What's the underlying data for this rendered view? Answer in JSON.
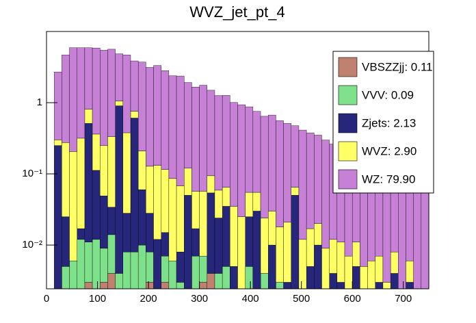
{
  "chart_data": {
    "type": "stacked-histogram",
    "title": "WVZ_jet_pt_4",
    "bins": [
      0,
      15,
      30,
      45,
      60,
      75,
      90,
      105,
      120,
      135,
      150,
      165,
      180,
      195,
      210,
      225,
      240,
      255,
      270,
      285,
      300,
      315,
      330,
      345,
      360,
      375,
      390,
      405,
      420,
      435,
      450,
      465,
      480,
      495,
      510,
      525,
      540,
      555,
      570,
      585,
      600,
      615,
      630,
      645,
      660,
      675,
      690,
      705,
      720,
      735,
      750
    ],
    "series": [
      {
        "name": "VBSZZjj: 0.11",
        "color": "#c08070",
        "values": [
          0,
          0,
          0,
          0,
          0.002,
          0.003,
          0,
          0.003,
          0.004,
          0,
          0,
          0.002,
          0,
          0.003,
          0.002,
          0.003,
          0,
          0,
          0,
          0.002,
          0.003,
          0.004,
          0,
          0.002,
          0,
          0,
          0,
          0,
          0,
          0,
          0,
          0,
          0,
          0,
          0,
          0,
          0,
          0,
          0,
          0,
          0,
          0,
          0,
          0,
          0,
          0,
          0,
          0,
          0,
          0
        ]
      },
      {
        "name": "VVV: 0.09",
        "color": "#7ee08a",
        "values": [
          0,
          0,
          0.005,
          0.006,
          0.01,
          0.008,
          0.012,
          0.006,
          0.01,
          0.004,
          0.008,
          0.006,
          0.01,
          0.005,
          0,
          0.004,
          0.006,
          0.003,
          0,
          0.005,
          0.004,
          0,
          0.004,
          0.003,
          0,
          0,
          0.005,
          0,
          0.004,
          0,
          0.003,
          0,
          0,
          0,
          0,
          0,
          0,
          0,
          0,
          0,
          0,
          0,
          0,
          0,
          0,
          0,
          0,
          0,
          0,
          0
        ]
      },
      {
        "name": "Zjets: 2.13",
        "color": "#26267a",
        "values": [
          0,
          0.25,
          0.02,
          0,
          0.005,
          0.5,
          0.1,
          0.04,
          0.02,
          0.9,
          0.02,
          0.6,
          0.05,
          0.02,
          0.01,
          0.008,
          0,
          0.005,
          0.05,
          0.01,
          0,
          0.05,
          0.02,
          0.03,
          0.005,
          0,
          0.02,
          0.03,
          0,
          0.01,
          0,
          0.003,
          0.05,
          0,
          0.005,
          0.01,
          0,
          0.004,
          0.003,
          0,
          0.005,
          0,
          0,
          0.003,
          0,
          0.004,
          0,
          0.003,
          0,
          0
        ]
      },
      {
        "name": "WVZ: 2.90",
        "color": "#ffff66",
        "values": [
          0,
          0.05,
          0.25,
          0.2,
          0.3,
          0.3,
          0.25,
          0.2,
          0.3,
          0.15,
          0.35,
          0.15,
          0.15,
          0.1,
          0.12,
          0.1,
          0.08,
          0.06,
          0.07,
          0.04,
          0.05,
          0.04,
          0.035,
          0.03,
          0.03,
          0.025,
          0.03,
          0.025,
          0.02,
          0.02,
          0.015,
          0.018,
          0.015,
          0.012,
          0.012,
          0.01,
          0.009,
          0.008,
          0.008,
          0.007,
          0.006,
          0.005,
          0.006,
          0.004,
          0.003,
          0.004,
          0.002,
          0.003,
          0.002,
          0.002
        ]
      },
      {
        "name": "WZ: 79.90",
        "color": "#c680d6",
        "values": [
          0,
          2.4,
          4.4,
          5.7,
          5.6,
          5.1,
          5.5,
          5.2,
          5.3,
          3.8,
          4.3,
          3.1,
          3.5,
          3.0,
          3.2,
          2.7,
          2.3,
          2.3,
          1.8,
          1.6,
          1.7,
          1.4,
          1.2,
          1.2,
          0.97,
          0.91,
          0.82,
          0.7,
          0.62,
          0.64,
          0.54,
          0.49,
          0.41,
          0.4,
          0.36,
          0.33,
          0.29,
          0.25,
          0.24,
          0.21,
          0.2,
          0.19,
          0.15,
          0.14,
          0.13,
          0.11,
          0.1,
          0.08,
          0.07,
          0.06
        ]
      }
    ],
    "xlim": [
      0,
      750
    ],
    "xticks": [
      0,
      100,
      200,
      300,
      400,
      500,
      600,
      700
    ],
    "ylim": [
      0.00243,
      10
    ],
    "log_y": true,
    "yticks": [
      {
        "value": 0.01,
        "label": "10⁻²"
      },
      {
        "value": 0.1,
        "label": "10⁻¹"
      },
      1
    ],
    "legend": "top-right"
  }
}
